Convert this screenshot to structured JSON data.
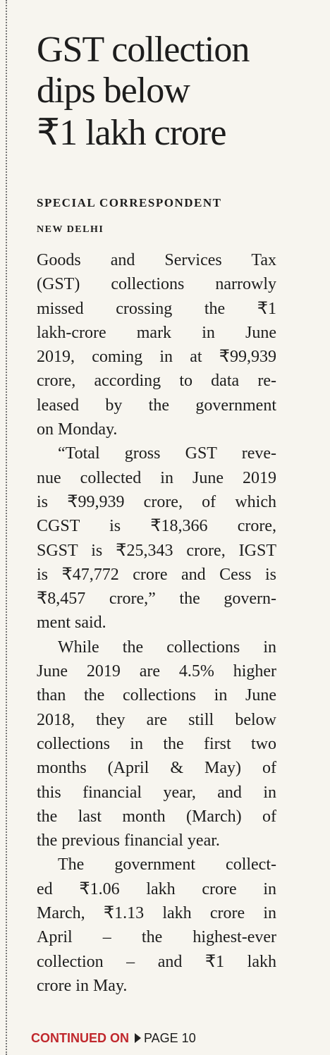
{
  "headline": [
    "GST collection",
    "dips below",
    "₹1 lakh crore"
  ],
  "byline": "SPECIAL CORRESPONDENT",
  "dateline": "NEW DELHI",
  "paragraphs": [
    [
      "Goods and Services Tax",
      "(GST) collections narrowly",
      "missed crossing the ₹1",
      "lakh-crore mark in June",
      "2019, coming in at ₹99,939",
      "crore, according to data re-",
      "leased by the government",
      "on Monday."
    ],
    [
      "“Total gross GST reve-",
      "nue collected in June 2019",
      "is ₹99,939 crore, of which",
      "CGST is ₹18,366 crore,",
      "SGST is ₹25,343 crore, IGST",
      "is ₹47,772 crore and Cess is",
      "₹8,457 crore,” the govern-",
      "ment said."
    ],
    [
      "While the collections in",
      "June 2019 are 4.5% higher",
      "than the collections in June",
      "2018, they are still below",
      "collections in the first two",
      "months (April & May) of",
      "this financial year, and in",
      "the last month (March) of",
      "the previous financial year."
    ],
    [
      "The government collect-",
      "ed ₹1.06 lakh crore in",
      "March, ₹1.13 lakh crore in",
      "April – the highest-ever",
      "collection – and ₹1 lakh",
      "crore in May."
    ]
  ],
  "footer": {
    "label": "CONTINUED ON",
    "page": "PAGE 10"
  }
}
